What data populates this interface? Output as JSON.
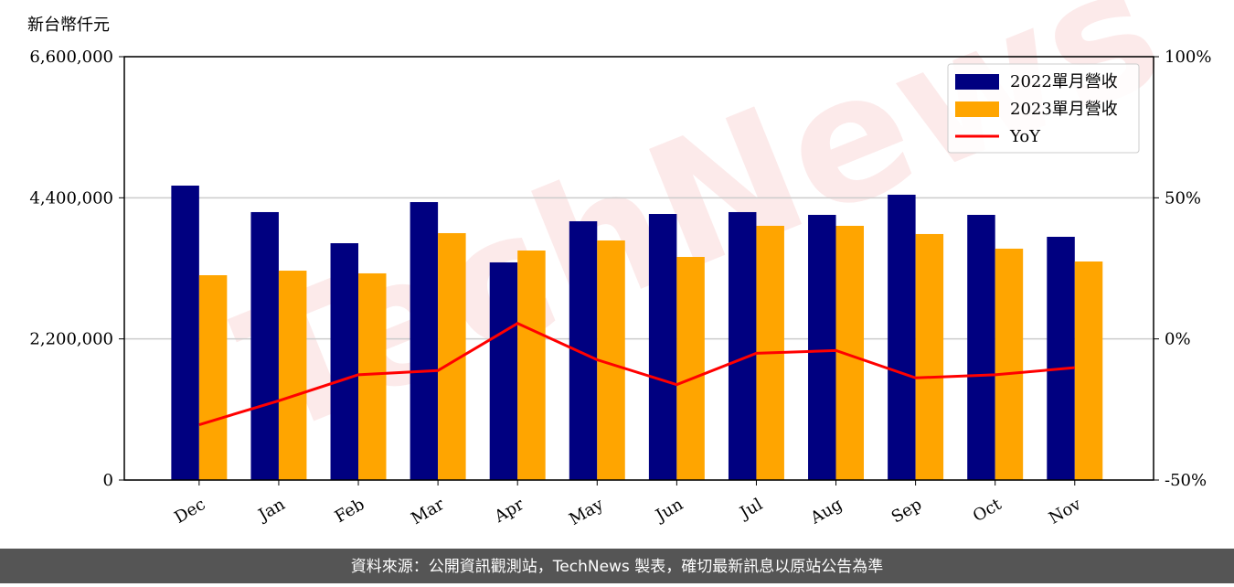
{
  "chart_data": {
    "type": "bar_line",
    "y_label": "新台幣仟元",
    "categories": [
      "Dec",
      "Jan",
      "Feb",
      "Mar",
      "Apr",
      "May",
      "Jun",
      "Jul",
      "Aug",
      "Sep",
      "Oct",
      "Nov"
    ],
    "series": [
      {
        "name": "2022單月營收",
        "color": "#000080",
        "type": "bar",
        "values": [
          4590000,
          4177000,
          3692000,
          4333000,
          3393000,
          4034000,
          4148000,
          4177000,
          4134000,
          4448000,
          4134000,
          3792000
        ]
      },
      {
        "name": "2023單月營收",
        "color": "#ffa500",
        "type": "bar",
        "values": [
          3193000,
          3264000,
          3222000,
          3849000,
          3578000,
          3735000,
          3478000,
          3963000,
          3963000,
          3835000,
          3607000,
          3407000
        ]
      },
      {
        "name": "YoY",
        "color": "#ff0000",
        "type": "line",
        "axis": "y2",
        "values": [
          -30.4,
          -21.9,
          -12.7,
          -11.2,
          5.5,
          -7.4,
          -16.2,
          -5.1,
          -4.1,
          -13.8,
          -12.7,
          -10.2
        ]
      }
    ],
    "ylim": [
      0,
      6600000
    ],
    "yticks": [
      0,
      {
        "value": 2200000,
        "label": "2,200,000"
      },
      {
        "value": 4400000,
        "label": "4,400,000"
      },
      {
        "value": 6600000,
        "label": "6,600,000"
      }
    ],
    "y2lim": [
      -50,
      100
    ],
    "y2ticks": [
      {
        "value": -50,
        "label": "-50%"
      },
      {
        "value": 0,
        "label": "0%"
      },
      {
        "value": 50,
        "label": "50%"
      },
      {
        "value": 100,
        "label": "100%"
      }
    ],
    "grid": true,
    "legend": "upper right",
    "watermark": "TechNews",
    "footer": "資料來源：公開資訊觀測站，TechNews 製表，確切最新訊息以原站公告為準"
  }
}
